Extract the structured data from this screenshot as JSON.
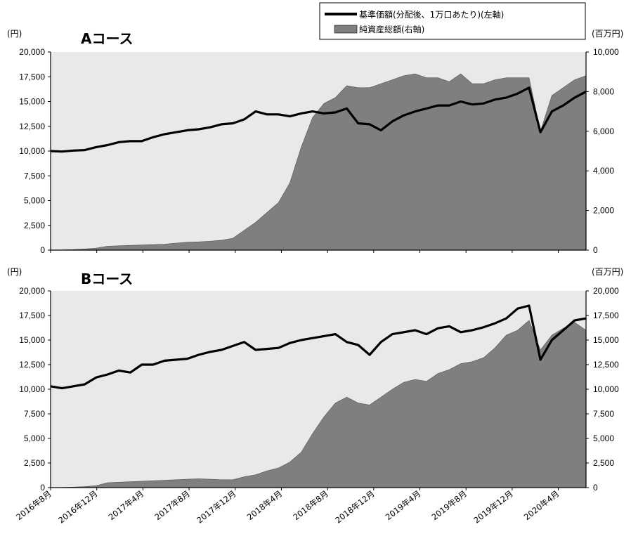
{
  "legend": {
    "line_label": "基準価額(分配後、1万口あたり)(左軸)",
    "area_label": "純資産総額(右軸)"
  },
  "colors": {
    "plot_bg": "#e9e9e9",
    "area_fill": "#7f7f7f",
    "line": "#000000"
  },
  "chart_data": [
    {
      "type": "line",
      "title": "Aコース",
      "left_unit": "(円)",
      "right_unit": "(百万円)",
      "ylim_left": [
        0,
        20000
      ],
      "ylim_right": [
        0,
        10000
      ],
      "left_ticks": [
        "20,000",
        "17,500",
        "15,000",
        "12,500",
        "10,000",
        "7,500",
        "5,000",
        "2,500",
        "0"
      ],
      "right_ticks": [
        "10,000",
        "8,000",
        "6,000",
        "4,000",
        "2,000",
        "0"
      ],
      "x_ticks": [
        "2016年8月",
        "2016年12月",
        "2017年4月",
        "2017年8月",
        "2017年12月",
        "2018年4月",
        "2018年8月",
        "2018年12月",
        "2019年4月",
        "2019年8月",
        "2019年12月",
        "2020年4月"
      ],
      "x_range": [
        "2016-08",
        "2020-07"
      ],
      "series": [
        {
          "name": "基準価額(分配後、1万口あたり)(左軸)",
          "axis": "left",
          "x": [
            "2016-08",
            "2016-09",
            "2016-10",
            "2016-11",
            "2016-12",
            "2017-01",
            "2017-02",
            "2017-03",
            "2017-04",
            "2017-05",
            "2017-06",
            "2017-07",
            "2017-08",
            "2017-09",
            "2017-10",
            "2017-11",
            "2017-12",
            "2018-01",
            "2018-02",
            "2018-03",
            "2018-04",
            "2018-05",
            "2018-06",
            "2018-07",
            "2018-08",
            "2018-09",
            "2018-10",
            "2018-11",
            "2018-12",
            "2019-01",
            "2019-02",
            "2019-03",
            "2019-04",
            "2019-05",
            "2019-06",
            "2019-07",
            "2019-08",
            "2019-09",
            "2019-10",
            "2019-11",
            "2019-12",
            "2020-01",
            "2020-02",
            "2020-03",
            "2020-04",
            "2020-05",
            "2020-06",
            "2020-07"
          ],
          "values": [
            10000,
            9950,
            10050,
            10100,
            10400,
            10600,
            10900,
            11000,
            11000,
            11400,
            11700,
            11900,
            12100,
            12200,
            12400,
            12700,
            12800,
            13200,
            14000,
            13700,
            13700,
            13500,
            13800,
            14000,
            13800,
            13900,
            14300,
            12800,
            12700,
            12100,
            13000,
            13600,
            14000,
            14300,
            14600,
            14600,
            15000,
            14700,
            14800,
            15200,
            15400,
            15800,
            16400,
            11900,
            14000,
            14600,
            15400,
            16000
          ]
        },
        {
          "name": "純資産総額(右軸)",
          "axis": "right",
          "x": [
            "2016-08",
            "2016-09",
            "2016-10",
            "2016-11",
            "2016-12",
            "2017-01",
            "2017-02",
            "2017-03",
            "2017-04",
            "2017-05",
            "2017-06",
            "2017-07",
            "2017-08",
            "2017-09",
            "2017-10",
            "2017-11",
            "2017-12",
            "2018-01",
            "2018-02",
            "2018-03",
            "2018-04",
            "2018-05",
            "2018-06",
            "2018-07",
            "2018-08",
            "2018-09",
            "2018-10",
            "2018-11",
            "2018-12",
            "2019-01",
            "2019-02",
            "2019-03",
            "2019-04",
            "2019-05",
            "2019-06",
            "2019-07",
            "2019-08",
            "2019-09",
            "2019-10",
            "2019-11",
            "2019-12",
            "2020-01",
            "2020-02",
            "2020-03",
            "2020-04",
            "2020-05",
            "2020-06",
            "2020-07"
          ],
          "values": [
            0,
            10,
            30,
            60,
            100,
            200,
            220,
            240,
            260,
            280,
            300,
            350,
            400,
            420,
            450,
            500,
            600,
            1000,
            1400,
            1900,
            2400,
            3400,
            5200,
            6700,
            7400,
            7700,
            8300,
            8200,
            8200,
            8400,
            8600,
            8800,
            8900,
            8700,
            8700,
            8500,
            8900,
            8400,
            8400,
            8600,
            8700,
            8700,
            8700,
            6000,
            7800,
            8200,
            8600,
            8800
          ]
        }
      ]
    },
    {
      "type": "line",
      "title": "Bコース",
      "left_unit": "(円)",
      "right_unit": "(百万円)",
      "ylim_left": [
        0,
        20000
      ],
      "ylim_right": [
        0,
        20000
      ],
      "left_ticks": [
        "20,000",
        "17,500",
        "15,000",
        "12,500",
        "10,000",
        "7,500",
        "5,000",
        "2,500",
        "0"
      ],
      "right_ticks": [
        "20,000",
        "17,500",
        "15,000",
        "12,500",
        "10,000",
        "7,500",
        "5,000",
        "2,500",
        "0"
      ],
      "x_ticks": [
        "2016年8月",
        "2016年12月",
        "2017年4月",
        "2017年8月",
        "2017年12月",
        "2018年4月",
        "2018年8月",
        "2018年12月",
        "2019年4月",
        "2019年8月",
        "2019年12月",
        "2020年4月"
      ],
      "x_range": [
        "2016-08",
        "2020-07"
      ],
      "series": [
        {
          "name": "基準価額(分配後、1万口あたり)(左軸)",
          "axis": "left",
          "x": [
            "2016-08",
            "2016-09",
            "2016-10",
            "2016-11",
            "2016-12",
            "2017-01",
            "2017-02",
            "2017-03",
            "2017-04",
            "2017-05",
            "2017-06",
            "2017-07",
            "2017-08",
            "2017-09",
            "2017-10",
            "2017-11",
            "2017-12",
            "2018-01",
            "2018-02",
            "2018-03",
            "2018-04",
            "2018-05",
            "2018-06",
            "2018-07",
            "2018-08",
            "2018-09",
            "2018-10",
            "2018-11",
            "2018-12",
            "2019-01",
            "2019-02",
            "2019-03",
            "2019-04",
            "2019-05",
            "2019-06",
            "2019-07",
            "2019-08",
            "2019-09",
            "2019-10",
            "2019-11",
            "2019-12",
            "2020-01",
            "2020-02",
            "2020-03",
            "2020-04",
            "2020-05",
            "2020-06",
            "2020-07"
          ],
          "values": [
            10300,
            10100,
            10300,
            10500,
            11200,
            11500,
            11900,
            11700,
            12500,
            12500,
            12900,
            13000,
            13100,
            13500,
            13800,
            14000,
            14400,
            14800,
            14000,
            14100,
            14200,
            14700,
            15000,
            15200,
            15400,
            15600,
            14800,
            14500,
            13500,
            14800,
            15600,
            15800,
            16000,
            15600,
            16200,
            16400,
            15800,
            16000,
            16300,
            16700,
            17200,
            18200,
            18500,
            13000,
            15000,
            16000,
            17000,
            17200
          ]
        },
        {
          "name": "純資産総額(右軸)",
          "axis": "right",
          "x": [
            "2016-08",
            "2016-09",
            "2016-10",
            "2016-11",
            "2016-12",
            "2017-01",
            "2017-02",
            "2017-03",
            "2017-04",
            "2017-05",
            "2017-06",
            "2017-07",
            "2017-08",
            "2017-09",
            "2017-10",
            "2017-11",
            "2017-12",
            "2018-01",
            "2018-02",
            "2018-03",
            "2018-04",
            "2018-05",
            "2018-06",
            "2018-07",
            "2018-08",
            "2018-09",
            "2018-10",
            "2018-11",
            "2018-12",
            "2019-01",
            "2019-02",
            "2019-03",
            "2019-04",
            "2019-05",
            "2019-06",
            "2019-07",
            "2019-08",
            "2019-09",
            "2019-10",
            "2019-11",
            "2019-12",
            "2020-01",
            "2020-02",
            "2020-03",
            "2020-04",
            "2020-05",
            "2020-06",
            "2020-07"
          ],
          "values": [
            0,
            20,
            50,
            100,
            200,
            500,
            550,
            600,
            650,
            700,
            750,
            800,
            850,
            900,
            850,
            800,
            800,
            1100,
            1300,
            1700,
            2000,
            2600,
            3600,
            5500,
            7200,
            8600,
            9200,
            8600,
            8400,
            9200,
            10000,
            10700,
            11000,
            10800,
            11600,
            12000,
            12600,
            12800,
            13200,
            14200,
            15500,
            16000,
            17000,
            14000,
            15500,
            16200,
            16800,
            16000
          ]
        }
      ]
    }
  ]
}
